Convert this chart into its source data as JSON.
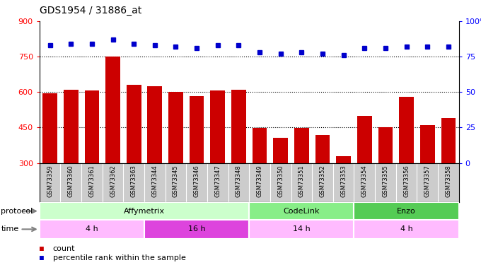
{
  "title": "GDS1954 / 31886_at",
  "samples": [
    "GSM73359",
    "GSM73360",
    "GSM73361",
    "GSM73362",
    "GSM73363",
    "GSM73344",
    "GSM73345",
    "GSM73346",
    "GSM73347",
    "GSM73348",
    "GSM73349",
    "GSM73350",
    "GSM73351",
    "GSM73352",
    "GSM73353",
    "GSM73354",
    "GSM73355",
    "GSM73356",
    "GSM73357",
    "GSM73358"
  ],
  "counts": [
    595,
    610,
    608,
    750,
    630,
    625,
    600,
    582,
    608,
    610,
    448,
    408,
    448,
    418,
    330,
    500,
    452,
    580,
    460,
    490
  ],
  "percentiles": [
    83,
    84,
    84,
    87,
    84,
    83,
    82,
    81,
    83,
    83,
    78,
    77,
    78,
    77,
    76,
    81,
    81,
    82,
    82,
    82
  ],
  "bar_color": "#cc0000",
  "dot_color": "#0000cc",
  "ylim_left": [
    300,
    900
  ],
  "ylim_right": [
    0,
    100
  ],
  "yticks_left": [
    300,
    450,
    600,
    750,
    900
  ],
  "yticks_right": [
    0,
    25,
    50,
    75,
    100
  ],
  "ytick_labels_right": [
    "0",
    "25",
    "50",
    "75",
    "100%"
  ],
  "grid_values": [
    450,
    600,
    750
  ],
  "protocol_groups": [
    {
      "label": "Affymetrix",
      "start": 0,
      "end": 10,
      "color": "#ccffcc"
    },
    {
      "label": "CodeLink",
      "start": 10,
      "end": 15,
      "color": "#88ee88"
    },
    {
      "label": "Enzo",
      "start": 15,
      "end": 20,
      "color": "#55cc55"
    }
  ],
  "time_groups": [
    {
      "label": "4 h",
      "start": 0,
      "end": 5,
      "color": "#ffbbff"
    },
    {
      "label": "16 h",
      "start": 5,
      "end": 10,
      "color": "#dd44dd"
    },
    {
      "label": "14 h",
      "start": 10,
      "end": 15,
      "color": "#ffbbff"
    },
    {
      "label": "4 h",
      "start": 15,
      "end": 20,
      "color": "#ffbbff"
    }
  ],
  "bg_color": "#ffffff",
  "plot_bg_color": "#ffffff",
  "label_bg_color": "#cccccc",
  "border_color": "#000000"
}
